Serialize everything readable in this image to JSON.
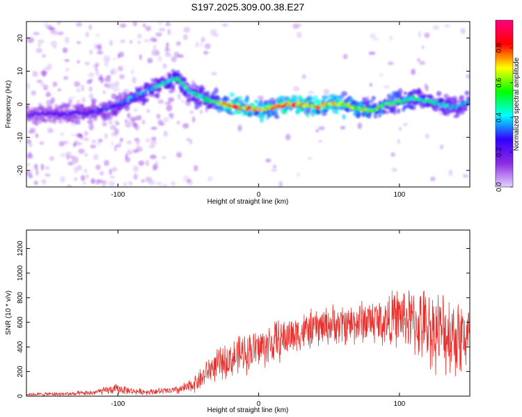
{
  "title": "S197.2025.309.00.38.E27",
  "chart_data": [
    {
      "type": "heatmap",
      "title": "S197.2025.309.00.38.E27",
      "xlabel": "Height of straight line (km)",
      "ylabel": "Frequency (Hz)",
      "xlim": [
        -165,
        150
      ],
      "ylim": [
        -25,
        25
      ],
      "xticks": [
        -100,
        0,
        100
      ],
      "yticks": [
        -20,
        -10,
        0,
        10,
        20
      ],
      "colorbar": {
        "label": "Normalized spectral amplitude",
        "range": [
          0.0,
          0.96
        ],
        "ticks": [
          "0.0",
          "0.2",
          "0.4",
          "0.6",
          "0.8"
        ],
        "colors": [
          "#e6d3ff",
          "#8a2be2",
          "#3300ff",
          "#00ffff",
          "#00ff00",
          "#ffff00",
          "#ff0000",
          "#ff0080"
        ]
      },
      "ridge": {
        "x": [
          -165,
          -140,
          -120,
          -105,
          -95,
          -85,
          -75,
          -65,
          -58,
          -50,
          -40,
          -30,
          -20,
          -10,
          0,
          10,
          20,
          30,
          40,
          50,
          60,
          70,
          80,
          90,
          100,
          110,
          120,
          130,
          140,
          150
        ],
        "frequency": [
          -3,
          -3,
          -2.5,
          -1,
          1,
          3,
          5,
          7,
          8,
          4,
          2,
          0.5,
          -0.5,
          -1,
          -1.5,
          -1,
          0,
          0,
          -1,
          0,
          0,
          -1,
          -2,
          0,
          1,
          2,
          1,
          0,
          -1,
          1
        ],
        "amplitude": [
          0.25,
          0.28,
          0.3,
          0.35,
          0.4,
          0.42,
          0.45,
          0.5,
          0.55,
          0.5,
          0.55,
          0.6,
          0.9,
          0.85,
          0.8,
          0.75,
          0.9,
          0.85,
          0.8,
          0.75,
          0.8,
          0.7,
          0.65,
          0.6,
          0.6,
          0.55,
          0.5,
          0.5,
          0.45,
          0.45
        ]
      }
    },
    {
      "type": "line",
      "xlabel": "Height of straight line (km)",
      "ylabel": "SNR (10 * v/v)",
      "xlim": [
        -165,
        150
      ],
      "ylim": [
        0,
        1350
      ],
      "xticks": [
        -100,
        0,
        100
      ],
      "yticks": [
        0,
        200,
        400,
        600,
        800,
        1000,
        1200
      ],
      "color": "#e8302c",
      "series": [
        {
          "name": "SNR",
          "envelope": {
            "x": [
              -165,
              -140,
              -120,
              -100,
              -90,
              -80,
              -60,
              -50,
              -40,
              -35,
              -30,
              -20,
              -10,
              0,
              10,
              20,
              30,
              40,
              50,
              60,
              70,
              80,
              90,
              100,
              110,
              120,
              130,
              140,
              150
            ],
            "mean": [
              15,
              18,
              25,
              60,
              40,
              35,
              45,
              70,
              150,
              220,
              250,
              300,
              350,
              390,
              430,
              480,
              520,
              550,
              580,
              580,
              600,
              620,
              600,
              650,
              600,
              560,
              520,
              500,
              480
            ],
            "noise": [
              12,
              15,
              20,
              40,
              25,
              22,
              30,
              50,
              90,
              110,
              120,
              140,
              160,
              160,
              170,
              160,
              150,
              150,
              150,
              160,
              170,
              180,
              200,
              230,
              260,
              300,
              320,
              330,
              300
            ]
          }
        }
      ]
    }
  ]
}
